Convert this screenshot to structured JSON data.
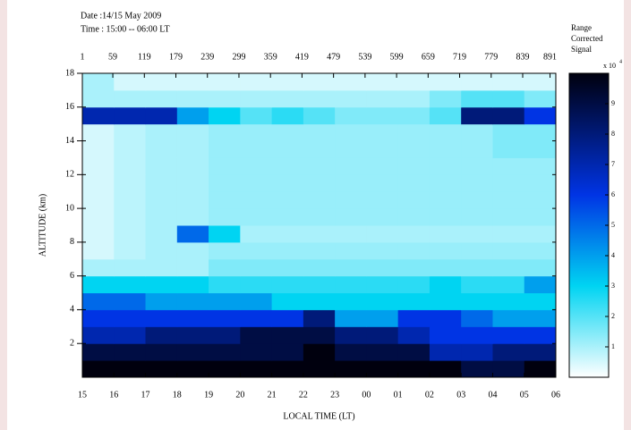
{
  "chart_data": {
    "type": "heatmap",
    "header": [
      "Date :14/15 May 2009",
      "Time : 15:00 -- 06:00 LT"
    ],
    "xlabel": "LOCAL TIME   (LT)",
    "ylabel": "ALTITUDE  (km)",
    "xlim": [
      0,
      15
    ],
    "xticks": [
      {
        "value": 0,
        "label": "15"
      },
      {
        "value": 1,
        "label": "16"
      },
      {
        "value": 2,
        "label": "17"
      },
      {
        "value": 3,
        "label": "18"
      },
      {
        "value": 4,
        "label": "19"
      },
      {
        "value": 5,
        "label": "20"
      },
      {
        "value": 6,
        "label": "21"
      },
      {
        "value": 7,
        "label": "22"
      },
      {
        "value": 8,
        "label": "23"
      },
      {
        "value": 9,
        "label": "00"
      },
      {
        "value": 10,
        "label": "01"
      },
      {
        "value": 11,
        "label": "02"
      },
      {
        "value": 12,
        "label": "03"
      },
      {
        "value": 13,
        "label": "04"
      },
      {
        "value": 14,
        "label": "05"
      },
      {
        "value": 15,
        "label": "06"
      }
    ],
    "x2lim": [
      1,
      902
    ],
    "x2ticks": [
      1,
      59,
      119,
      179,
      239,
      299,
      359,
      419,
      479,
      539,
      599,
      659,
      719,
      779,
      839,
      891
    ],
    "ylim": [
      0,
      18
    ],
    "yticks": [
      2,
      4,
      6,
      8,
      10,
      12,
      14,
      16,
      18
    ],
    "z": [
      [
        10,
        10,
        10,
        10,
        10,
        10,
        10,
        10,
        10,
        10,
        10,
        10,
        9,
        9,
        10
      ],
      [
        9,
        9,
        9,
        9,
        9,
        9,
        9,
        10,
        9,
        9,
        9,
        7,
        7,
        8,
        8
      ],
      [
        7,
        7,
        8,
        8,
        8,
        9,
        9,
        9,
        8,
        8,
        7,
        6,
        6,
        6,
        6
      ],
      [
        6,
        6,
        6,
        6,
        6,
        6,
        6,
        8,
        4,
        4,
        6,
        6,
        5,
        4,
        4
      ],
      [
        5,
        5,
        4,
        4,
        4,
        4,
        3,
        3,
        3,
        3,
        3,
        3,
        3,
        3,
        3
      ],
      [
        3,
        3,
        3,
        3,
        2.5,
        2.5,
        2.5,
        2.5,
        2.5,
        2.5,
        2.5,
        3,
        2.5,
        2.5,
        4
      ],
      [
        1,
        1,
        1,
        1,
        1.5,
        1.5,
        1.5,
        1.5,
        1.5,
        1.5,
        1.5,
        1.5,
        1.5,
        1.5,
        1.5
      ],
      [
        0.5,
        0.8,
        1,
        1,
        1.2,
        1.2,
        1.2,
        1.2,
        1.2,
        1.2,
        1.2,
        1.2,
        1.2,
        1.2,
        1.2
      ],
      [
        0.5,
        0.8,
        1,
        5,
        3,
        1,
        1,
        1,
        1,
        1,
        1,
        1,
        1,
        1,
        1
      ],
      [
        0.5,
        0.8,
        1,
        1,
        1.2,
        1.2,
        1.2,
        1.2,
        1.2,
        1.2,
        1.2,
        1.2,
        1.2,
        1.2,
        1.2
      ],
      [
        0.5,
        0.8,
        1,
        1,
        1.2,
        1.2,
        1.2,
        1.2,
        1.2,
        1.2,
        1.2,
        1.2,
        1.2,
        1.2,
        1.2
      ],
      [
        0.5,
        0.8,
        1,
        1,
        1.2,
        1.2,
        1.2,
        1.2,
        1.2,
        1.2,
        1.2,
        1.2,
        1.2,
        1.2,
        1.2
      ],
      [
        0.5,
        0.8,
        1,
        1,
        1.2,
        1.2,
        1.2,
        1.2,
        1.2,
        1.2,
        1.2,
        1.2,
        1.2,
        1.2,
        1.2
      ],
      [
        0.5,
        0.8,
        1,
        1,
        1.2,
        1.2,
        1.2,
        1.2,
        1.2,
        1.2,
        1.2,
        1.2,
        1.2,
        1.5,
        1.5
      ],
      [
        0.5,
        0.8,
        1,
        1,
        1.2,
        1.2,
        1.2,
        1.2,
        1.2,
        1.2,
        1.2,
        1.2,
        1.2,
        1.5,
        1.5
      ],
      [
        7,
        7,
        7,
        4,
        3,
        2,
        2.5,
        2,
        1.5,
        1.5,
        1.5,
        2,
        8,
        8,
        6
      ],
      [
        1,
        1,
        1,
        1,
        1,
        1,
        1,
        1,
        1,
        1,
        1,
        1.5,
        2,
        2,
        1.5
      ],
      [
        1,
        0.5,
        0.5,
        0.5,
        0.5,
        0.5,
        0.5,
        0.5,
        0.5,
        0.5,
        0.5,
        0.5,
        0.5,
        0.5,
        0.5
      ]
    ],
    "colorbar_label": [
      "Range",
      "Corrected",
      "Signal"
    ],
    "colorbar_scale": "x 10",
    "colorbar_exponent": "4",
    "clim": [
      0,
      10
    ],
    "cticks": [
      1,
      2,
      3,
      4,
      5,
      6,
      7,
      8,
      9
    ],
    "colormap": [
      {
        "value": 0,
        "color": "#ffffff"
      },
      {
        "value": 3,
        "color": "#00d4f2"
      },
      {
        "value": 6,
        "color": "#0034e4"
      },
      {
        "value": 10,
        "color": "#00000e"
      }
    ]
  }
}
